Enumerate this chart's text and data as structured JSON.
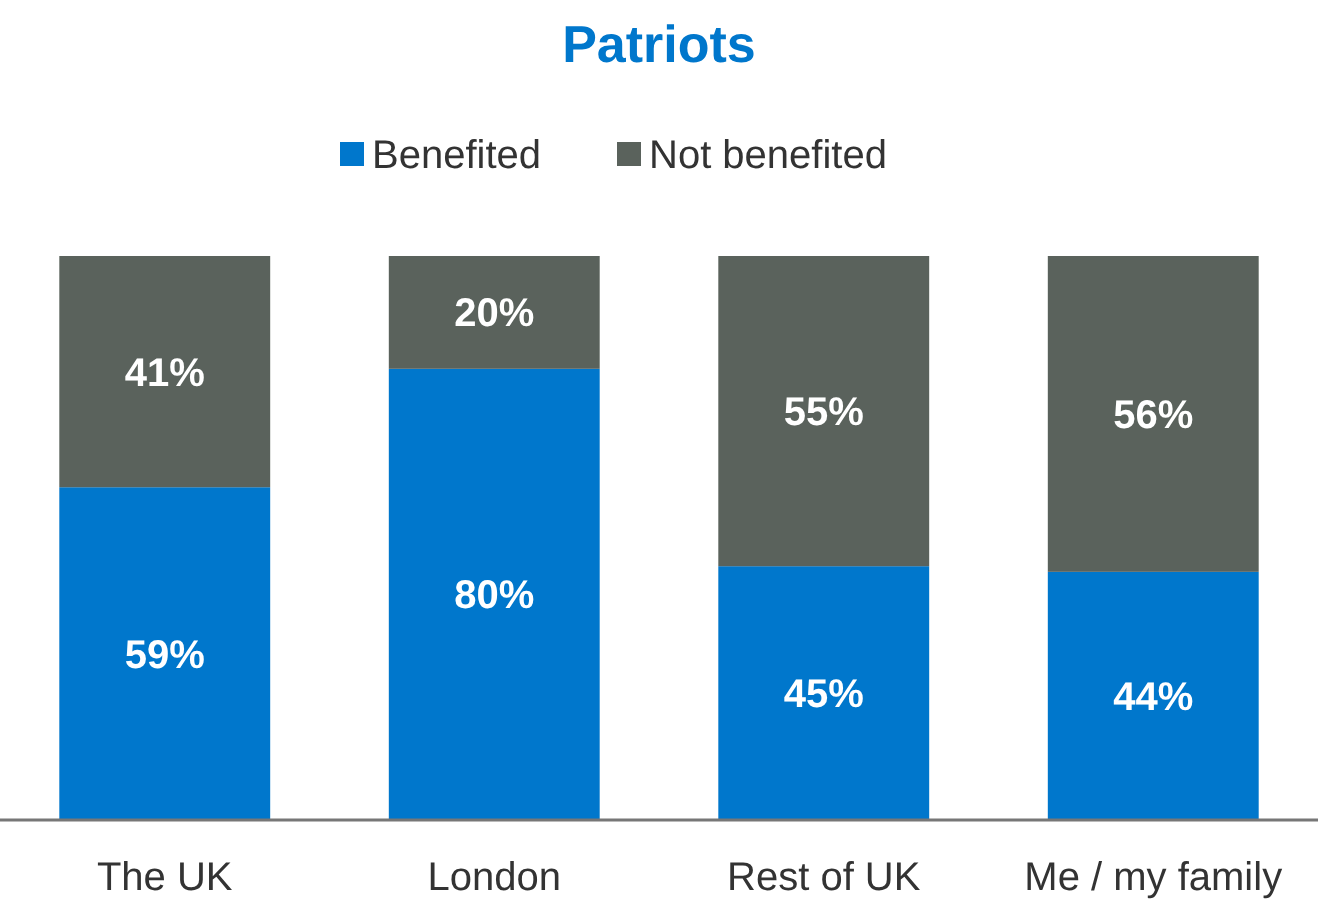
{
  "chart_data": {
    "type": "bar",
    "title": "Patriots",
    "categories": [
      "The UK",
      "London",
      "Rest of UK",
      "Me / my family"
    ],
    "stacked": true,
    "legend": "top",
    "series": [
      {
        "name": "Benefited",
        "color": "#0077cc",
        "values": [
          59,
          80,
          45,
          44
        ],
        "value_labels": [
          "59%",
          "80%",
          "45%",
          "44%"
        ]
      },
      {
        "name": "Not benefited",
        "color": "#5a625c",
        "values": [
          41,
          20,
          55,
          56
        ],
        "value_labels": [
          "41%",
          "20%",
          "55%",
          "56%"
        ]
      }
    ]
  }
}
